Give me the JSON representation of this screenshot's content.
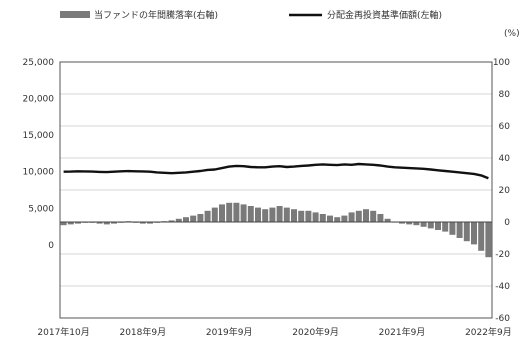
{
  "chart_data": {
    "type": "bar+line",
    "legend": [
      {
        "label": "当ファンドの年間騰落率(右軸)",
        "kind": "bar",
        "color": "#7a7a7a"
      },
      {
        "label": "分配金再投資基準価額(左軸)",
        "kind": "line",
        "color": "#111111"
      }
    ],
    "y_left": {
      "ylim": [
        -10000,
        25000
      ],
      "ticks": [
        0,
        5000,
        10000,
        15000,
        20000,
        25000
      ],
      "tick_labels": [
        "0",
        "5,000",
        "10,000",
        "15,000",
        "20,000",
        "25,000"
      ]
    },
    "y_right": {
      "unit": "(%)",
      "ylim": [
        -60,
        100
      ],
      "ticks": [
        -60,
        -40,
        -20,
        0,
        20,
        40,
        60,
        80,
        100
      ],
      "tick_labels": [
        "-60",
        "-40",
        "-20",
        "0",
        "20",
        "40",
        "60",
        "80",
        "100"
      ]
    },
    "x_tick_labels": [
      "2017年10月",
      "2018年9月",
      "2019年9月",
      "2020年9月",
      "2021年9月",
      "2022年9月"
    ],
    "x_tick_positions": [
      0,
      11,
      23,
      35,
      47,
      59
    ],
    "line_series": {
      "name": "分配金再投資基準価額(左軸)",
      "values": [
        10000,
        10020,
        10050,
        10040,
        10010,
        9980,
        9950,
        10000,
        10050,
        10080,
        10060,
        10040,
        10000,
        9900,
        9850,
        9800,
        9850,
        9900,
        10000,
        10100,
        10250,
        10300,
        10500,
        10700,
        10800,
        10750,
        10650,
        10600,
        10600,
        10700,
        10750,
        10650,
        10700,
        10800,
        10850,
        10950,
        11000,
        10950,
        10900,
        11000,
        10950,
        11050,
        11000,
        10950,
        10850,
        10700,
        10600,
        10550,
        10500,
        10450,
        10400,
        10300,
        10200,
        10100,
        10000,
        9900,
        9800,
        9700,
        9500,
        9100
      ]
    },
    "bar_series": {
      "name": "当ファンドの年間騰落率(右軸)",
      "values": [
        -2,
        -1.5,
        -1,
        -0.5,
        -0.5,
        -1,
        -1.5,
        -1,
        -0.5,
        0.5,
        -0.5,
        -1,
        -1,
        -0.5,
        0.5,
        1,
        2,
        3,
        4,
        5,
        7,
        9,
        11,
        12,
        12,
        11,
        10,
        9,
        8,
        9,
        10,
        9,
        8,
        7,
        7,
        6,
        5,
        4,
        3,
        4,
        6,
        7,
        8,
        7,
        5,
        2,
        0,
        -1,
        -1.5,
        -2,
        -3,
        -4,
        -5,
        -6,
        -8,
        -10,
        -12,
        -14,
        -18,
        -22
      ]
    }
  }
}
